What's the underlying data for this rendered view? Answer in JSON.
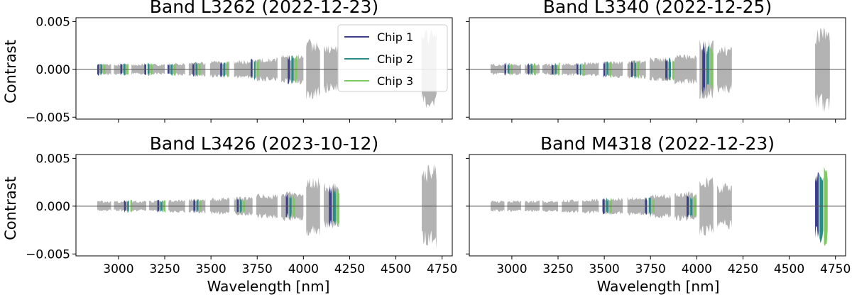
{
  "figure": {
    "ylabel": "Contrast",
    "xlabel": "Wavelength [nm]",
    "legend": {
      "placement": "upper-right of first panel",
      "entries": [
        {
          "label": "Chip 1",
          "color": "#3b3f87"
        },
        {
          "label": "Chip 2",
          "color": "#2a8c8a"
        },
        {
          "label": "Chip 3",
          "color": "#7ccb5e"
        }
      ]
    }
  },
  "chart_data": [
    {
      "type": "line",
      "title": "Band L3262 (2022-12-23)",
      "xlim": [
        2770,
        4805
      ],
      "ylim": [
        -0.0052,
        0.0054
      ],
      "yticks": [
        {
          "value": 0.005,
          "label": "0.005"
        },
        {
          "value": 0.0,
          "label": "0.000"
        },
        {
          "value": -0.005,
          "label": "−0.005"
        }
      ],
      "xticks": [],
      "grey_segments": [
        [
          2885,
          2960
        ],
        [
          2975,
          3050
        ],
        [
          3070,
          3150
        ],
        [
          3165,
          3250
        ],
        [
          3270,
          3360
        ],
        [
          3380,
          3470
        ],
        [
          3495,
          3600
        ],
        [
          3625,
          3725
        ],
        [
          3745,
          3860
        ],
        [
          3880,
          4000
        ],
        [
          4015,
          4090
        ],
        [
          4110,
          4190
        ],
        [
          4640,
          4720
        ]
      ],
      "grey_amplitude": [
        0.0006,
        0.0006,
        0.0006,
        0.0006,
        0.0007,
        0.0008,
        0.0009,
        0.001,
        0.0013,
        0.0016,
        0.0032,
        0.0025,
        0.0042
      ],
      "chips": [
        {
          "name": "Chip 1",
          "segments": [
            [
              2885,
              2895
            ],
            [
              3010,
              3020
            ],
            [
              3140,
              3150
            ],
            [
              3265,
              3275
            ],
            [
              3400,
              3410
            ],
            [
              3550,
              3560
            ],
            [
              3715,
              3725
            ],
            [
              3915,
              3927
            ]
          ],
          "amplitude": [
            0.0007,
            0.0007,
            0.0007,
            0.0007,
            0.0008,
            0.0009,
            0.0011,
            0.0016
          ]
        },
        {
          "name": "Chip 2",
          "segments": [
            [
              2902,
              2912
            ],
            [
              3027,
              3037
            ],
            [
              3157,
              3167
            ],
            [
              3282,
              3292
            ],
            [
              3417,
              3427
            ],
            [
              3567,
              3577
            ],
            [
              3732,
              3742
            ],
            [
              3935,
              3947
            ]
          ],
          "amplitude": [
            0.0007,
            0.0007,
            0.0007,
            0.0007,
            0.0008,
            0.0009,
            0.0011,
            0.0016
          ]
        },
        {
          "name": "Chip 3",
          "segments": [
            [
              2919,
              2929
            ],
            [
              3044,
              3054
            ],
            [
              3174,
              3184
            ],
            [
              3299,
              3309
            ],
            [
              3434,
              3444
            ],
            [
              3584,
              3594
            ],
            [
              3749,
              3759
            ],
            [
              3955,
              3967
            ]
          ],
          "amplitude": [
            0.0007,
            0.0007,
            0.0007,
            0.0007,
            0.0008,
            0.0009,
            0.0011,
            0.0017
          ]
        }
      ]
    },
    {
      "type": "line",
      "title": "Band L3340 (2022-12-25)",
      "xlim": [
        2770,
        4805
      ],
      "ylim": [
        -0.0052,
        0.0054
      ],
      "yticks": [],
      "xticks": [],
      "grey_segments": [
        [
          2885,
          2960
        ],
        [
          2975,
          3050
        ],
        [
          3070,
          3150
        ],
        [
          3165,
          3250
        ],
        [
          3270,
          3360
        ],
        [
          3380,
          3470
        ],
        [
          3495,
          3600
        ],
        [
          3625,
          3725
        ],
        [
          3745,
          3860
        ],
        [
          3880,
          4000
        ],
        [
          4015,
          4090
        ],
        [
          4110,
          4190
        ],
        [
          4640,
          4720
        ]
      ],
      "grey_amplitude": [
        0.0006,
        0.0006,
        0.0006,
        0.0006,
        0.0007,
        0.0008,
        0.0009,
        0.001,
        0.0013,
        0.0016,
        0.0032,
        0.0025,
        0.0045
      ],
      "chips": [
        {
          "name": "Chip 1",
          "segments": [
            [
              2960,
              2970
            ],
            [
              3085,
              3095
            ],
            [
              3215,
              3225
            ],
            [
              3350,
              3360
            ],
            [
              3495,
              3505
            ],
            [
              3645,
              3655
            ],
            [
              3830,
              3842
            ],
            [
              4030,
              4045
            ]
          ],
          "amplitude": [
            0.0007,
            0.0007,
            0.0007,
            0.0007,
            0.0009,
            0.001,
            0.0013,
            0.003
          ]
        },
        {
          "name": "Chip 2",
          "segments": [
            [
              2977,
              2987
            ],
            [
              3102,
              3112
            ],
            [
              3232,
              3242
            ],
            [
              3367,
              3377
            ],
            [
              3512,
              3522
            ],
            [
              3662,
              3672
            ],
            [
              3849,
              3861
            ],
            [
              4052,
              4067
            ]
          ],
          "amplitude": [
            0.0007,
            0.0007,
            0.0007,
            0.0007,
            0.0009,
            0.001,
            0.0013,
            0.0027
          ]
        },
        {
          "name": "Chip 3",
          "segments": [
            [
              2994,
              3004
            ],
            [
              3119,
              3129
            ],
            [
              3249,
              3259
            ],
            [
              3384,
              3394
            ],
            [
              3529,
              3539
            ],
            [
              3679,
              3689
            ],
            [
              3868,
              3880
            ],
            [
              4074,
              4089
            ]
          ],
          "amplitude": [
            0.0007,
            0.0007,
            0.0007,
            0.0007,
            0.0009,
            0.001,
            0.0013,
            0.0025
          ]
        }
      ]
    },
    {
      "type": "line",
      "title": "Band L3426 (2023-10-12)",
      "xlim": [
        2770,
        4805
      ],
      "ylim": [
        -0.0052,
        0.0054
      ],
      "yticks": [
        {
          "value": 0.005,
          "label": "0.005"
        },
        {
          "value": 0.0,
          "label": "0.000"
        },
        {
          "value": -0.005,
          "label": "−0.005"
        }
      ],
      "xticks": [
        {
          "value": 3000,
          "label": "3000"
        },
        {
          "value": 3250,
          "label": "3250"
        },
        {
          "value": 3500,
          "label": "3500"
        },
        {
          "value": 3750,
          "label": "3750"
        },
        {
          "value": 4000,
          "label": "4000"
        },
        {
          "value": 4250,
          "label": "4250"
        },
        {
          "value": 4500,
          "label": "4500"
        },
        {
          "value": 4750,
          "label": "4750"
        }
      ],
      "grey_segments": [
        [
          2885,
          2960
        ],
        [
          2975,
          3050
        ],
        [
          3070,
          3150
        ],
        [
          3165,
          3250
        ],
        [
          3270,
          3360
        ],
        [
          3380,
          3470
        ],
        [
          3495,
          3600
        ],
        [
          3625,
          3725
        ],
        [
          3745,
          3860
        ],
        [
          3880,
          4000
        ],
        [
          4015,
          4090
        ],
        [
          4110,
          4190
        ],
        [
          4640,
          4720
        ]
      ],
      "grey_amplitude": [
        0.0006,
        0.0006,
        0.0006,
        0.0006,
        0.0007,
        0.0008,
        0.0009,
        0.001,
        0.0013,
        0.0016,
        0.0032,
        0.0025,
        0.0045
      ],
      "chips": [
        {
          "name": "Chip 1",
          "segments": [
            [
              3030,
              3040
            ],
            [
              3210,
              3220
            ],
            [
              3405,
              3415
            ],
            [
              3640,
              3650
            ],
            [
              3905,
              3917
            ],
            [
              4138,
              4153
            ]
          ],
          "amplitude": [
            0.0007,
            0.0007,
            0.0007,
            0.0008,
            0.0013,
            0.0022
          ]
        },
        {
          "name": "Chip 2",
          "segments": [
            [
              3047,
              3057
            ],
            [
              3227,
              3237
            ],
            [
              3422,
              3432
            ],
            [
              3657,
              3667
            ],
            [
              3924,
              3936
            ],
            [
              4160,
              4175
            ]
          ],
          "amplitude": [
            0.0007,
            0.0007,
            0.0007,
            0.0008,
            0.0013,
            0.0022
          ]
        },
        {
          "name": "Chip 3",
          "segments": [
            [
              3064,
              3074
            ],
            [
              3244,
              3254
            ],
            [
              3439,
              3449
            ],
            [
              3674,
              3684
            ],
            [
              3943,
              3955
            ],
            [
              4180,
              4195
            ]
          ],
          "amplitude": [
            0.0007,
            0.0007,
            0.0007,
            0.0008,
            0.0013,
            0.0022
          ]
        }
      ]
    },
    {
      "type": "line",
      "title": "Band M4318 (2022-12-23)",
      "xlim": [
        2770,
        4805
      ],
      "ylim": [
        -0.0052,
        0.0054
      ],
      "yticks": [],
      "xticks": [
        {
          "value": 3000,
          "label": "3000"
        },
        {
          "value": 3250,
          "label": "3250"
        },
        {
          "value": 3500,
          "label": "3500"
        },
        {
          "value": 3750,
          "label": "3750"
        },
        {
          "value": 4000,
          "label": "4000"
        },
        {
          "value": 4250,
          "label": "4250"
        },
        {
          "value": 4500,
          "label": "4500"
        },
        {
          "value": 4750,
          "label": "4750"
        }
      ],
      "grey_segments": [
        [
          2885,
          2960
        ],
        [
          2975,
          3050
        ],
        [
          3070,
          3150
        ],
        [
          3165,
          3250
        ],
        [
          3270,
          3360
        ],
        [
          3380,
          3470
        ],
        [
          3495,
          3600
        ],
        [
          3625,
          3725
        ],
        [
          3745,
          3860
        ],
        [
          3880,
          4000
        ],
        [
          4015,
          4090
        ],
        [
          4110,
          4190
        ]
      ],
      "grey_amplitude": [
        0.0006,
        0.0006,
        0.0006,
        0.0006,
        0.0007,
        0.0008,
        0.0009,
        0.001,
        0.0013,
        0.0016,
        0.0032,
        0.0025
      ],
      "chips": [
        {
          "name": "Chip 1",
          "segments": [
            [
              3490,
              3502
            ],
            [
              3720,
              3732
            ],
            [
              3945,
              3957
            ],
            [
              4640,
              4660
            ]
          ],
          "amplitude": [
            0.0009,
            0.001,
            0.0012,
            0.0038
          ]
        },
        {
          "name": "Chip 2",
          "segments": [
            [
              3510,
              3522
            ],
            [
              3740,
              3752
            ],
            [
              3965,
              3977
            ],
            [
              4664,
              4684
            ]
          ],
          "amplitude": [
            0.0009,
            0.001,
            0.0012,
            0.004
          ]
        },
        {
          "name": "Chip 3",
          "segments": [
            [
              3530,
              3542
            ],
            [
              3760,
              3772
            ],
            [
              3985,
              3997
            ],
            [
              4688,
              4708
            ]
          ],
          "amplitude": [
            0.0009,
            0.001,
            0.0013,
            0.0045
          ]
        }
      ]
    }
  ]
}
